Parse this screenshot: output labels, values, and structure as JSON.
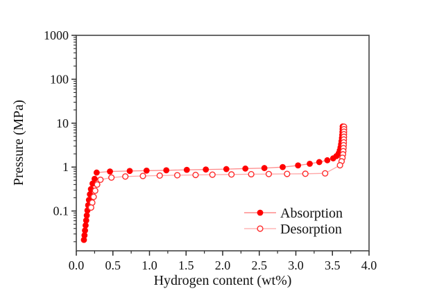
{
  "figure": {
    "background": "#ffffff"
  },
  "chart_data": {
    "type": "line",
    "title": "",
    "xlabel": "Hydrogen content (wt%)",
    "ylabel": "Pressure (MPa)",
    "xlim": [
      0.0,
      4.0
    ],
    "ylim": [
      0.0124,
      1000
    ],
    "yscale": "log",
    "grid": false,
    "frame": true,
    "legend_position": "inside-lower-right",
    "colors": {
      "marker_red": "#ff0000",
      "marker_ring_red": "#ff2a2a",
      "line_light_red": "#ff8a8a",
      "line_lighter_red": "#ffa6a6",
      "frame": "#4d4d4d",
      "tick": "#2b2b2b",
      "text": "#111111"
    },
    "xticks": {
      "major": [
        {
          "v": 0.0,
          "label": "0.0"
        },
        {
          "v": 0.5,
          "label": "0.5"
        },
        {
          "v": 1.0,
          "label": "1.0"
        },
        {
          "v": 1.5,
          "label": "1.5"
        },
        {
          "v": 2.0,
          "label": "2.0"
        },
        {
          "v": 2.5,
          "label": "2.5"
        },
        {
          "v": 3.0,
          "label": "3.0"
        },
        {
          "v": 3.5,
          "label": "3.5"
        },
        {
          "v": 4.0,
          "label": "4.0"
        }
      ],
      "minor_step": 0.25
    },
    "yticks": {
      "major": [
        {
          "v": 0.1,
          "label": "0.1"
        },
        {
          "v": 1,
          "label": "1"
        },
        {
          "v": 10,
          "label": "10"
        },
        {
          "v": 100,
          "label": "100"
        },
        {
          "v": 1000,
          "label": "1000"
        }
      ],
      "log_minors": true
    },
    "series": [
      {
        "name": "Absorption",
        "marker": "filled-circle",
        "points": [
          [
            0.104,
            0.022
          ],
          [
            0.112,
            0.028
          ],
          [
            0.119,
            0.036
          ],
          [
            0.127,
            0.047
          ],
          [
            0.135,
            0.061
          ],
          [
            0.143,
            0.079
          ],
          [
            0.152,
            0.103
          ],
          [
            0.162,
            0.135
          ],
          [
            0.173,
            0.178
          ],
          [
            0.186,
            0.24
          ],
          [
            0.2,
            0.315
          ],
          [
            0.222,
            0.42
          ],
          [
            0.25,
            0.54
          ],
          [
            0.278,
            0.75
          ],
          [
            0.46,
            0.795
          ],
          [
            0.73,
            0.815
          ],
          [
            0.96,
            0.83
          ],
          [
            1.23,
            0.845
          ],
          [
            1.51,
            0.865
          ],
          [
            1.77,
            0.88
          ],
          [
            2.05,
            0.9
          ],
          [
            2.31,
            0.925
          ],
          [
            2.57,
            0.95
          ],
          [
            2.82,
            1.0
          ],
          [
            3.03,
            1.09
          ],
          [
            3.19,
            1.19
          ],
          [
            3.32,
            1.3
          ],
          [
            3.43,
            1.43
          ],
          [
            3.51,
            1.58
          ],
          [
            3.555,
            1.78
          ],
          [
            3.585,
            2.05
          ],
          [
            3.6,
            2.4
          ],
          [
            3.61,
            2.8
          ],
          [
            3.618,
            3.3
          ],
          [
            3.624,
            3.9
          ],
          [
            3.63,
            4.6
          ],
          [
            3.634,
            5.4
          ],
          [
            3.637,
            6.3
          ],
          [
            3.639,
            7.3
          ],
          [
            3.64,
            8.4
          ]
        ]
      },
      {
        "name": "Desorption",
        "marker": "open-circle",
        "points": [
          [
            3.658,
            8.3
          ],
          [
            3.658,
            7.3
          ],
          [
            3.658,
            6.4
          ],
          [
            3.657,
            5.6
          ],
          [
            3.657,
            4.9
          ],
          [
            3.656,
            4.25
          ],
          [
            3.655,
            3.65
          ],
          [
            3.653,
            3.15
          ],
          [
            3.651,
            2.7
          ],
          [
            3.648,
            2.3
          ],
          [
            3.644,
            1.95
          ],
          [
            3.637,
            1.63
          ],
          [
            3.625,
            1.35
          ],
          [
            3.603,
            1.1
          ],
          [
            3.4,
            0.72
          ],
          [
            3.13,
            0.705
          ],
          [
            2.88,
            0.7
          ],
          [
            2.63,
            0.695
          ],
          [
            2.39,
            0.688
          ],
          [
            2.12,
            0.68
          ],
          [
            1.86,
            0.672
          ],
          [
            1.63,
            0.663
          ],
          [
            1.38,
            0.652
          ],
          [
            1.14,
            0.641
          ],
          [
            0.91,
            0.628
          ],
          [
            0.67,
            0.61
          ],
          [
            0.48,
            0.578
          ],
          [
            0.33,
            0.515
          ],
          [
            0.285,
            0.4
          ],
          [
            0.258,
            0.29
          ],
          [
            0.237,
            0.21
          ],
          [
            0.218,
            0.155
          ],
          [
            0.202,
            0.12
          ]
        ]
      }
    ]
  }
}
